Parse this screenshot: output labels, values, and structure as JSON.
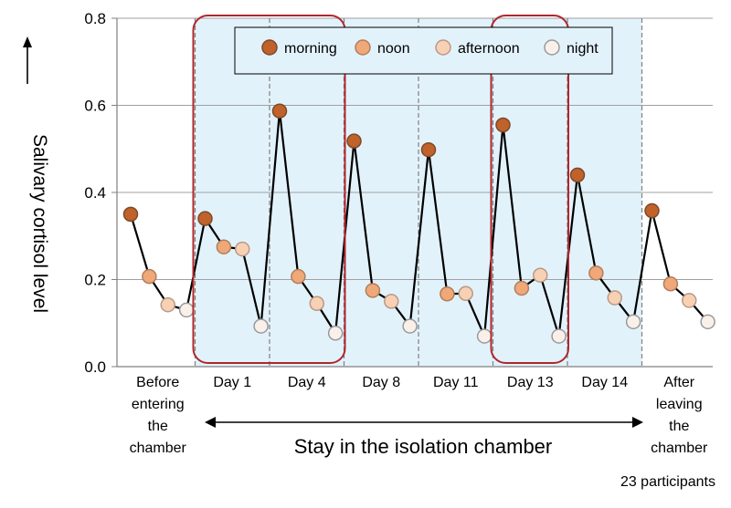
{
  "chart_data": {
    "type": "line",
    "ylabel": "Salivary cortisol level",
    "ylim": [
      0,
      0.8
    ],
    "yticks": [
      "0.0",
      "0.2",
      "0.4",
      "0.6",
      "0.8"
    ],
    "grid": true,
    "legend_position": "top",
    "legend": [
      "morning",
      "noon",
      "afternoon",
      "night"
    ],
    "categories": [
      [
        "Before",
        "entering",
        "the",
        "chamber"
      ],
      [
        "Day 1"
      ],
      [
        "Day 4"
      ],
      [
        "Day 8"
      ],
      [
        "Day 11"
      ],
      [
        "Day 13"
      ],
      [
        "Day 14"
      ],
      [
        "After",
        "leaving",
        "the",
        "chamber"
      ]
    ],
    "values": [
      [
        0.35,
        0.207,
        0.142,
        0.13
      ],
      [
        0.34,
        0.275,
        0.27,
        0.093
      ],
      [
        0.587,
        0.207,
        0.145,
        0.077
      ],
      [
        0.518,
        0.175,
        0.15,
        0.093
      ],
      [
        0.498,
        0.167,
        0.168,
        0.07
      ],
      [
        0.555,
        0.18,
        0.21,
        0.07
      ],
      [
        0.44,
        0.215,
        0.158,
        0.103
      ],
      [
        0.358,
        0.19,
        0.152,
        0.103
      ]
    ],
    "colors": {
      "morning": "#c0622a",
      "noon": "#f0a878",
      "afternoon": "#f8d0b4",
      "night": "#faf0ea",
      "shade": "#e2f2fb",
      "highlight": "#b0272d"
    },
    "highlighted_categories": [
      [
        "Day 1",
        "Day 4"
      ],
      [
        "Day 13"
      ]
    ],
    "annotation": "Stay in the isolation chamber",
    "footnote": "23 participants"
  }
}
